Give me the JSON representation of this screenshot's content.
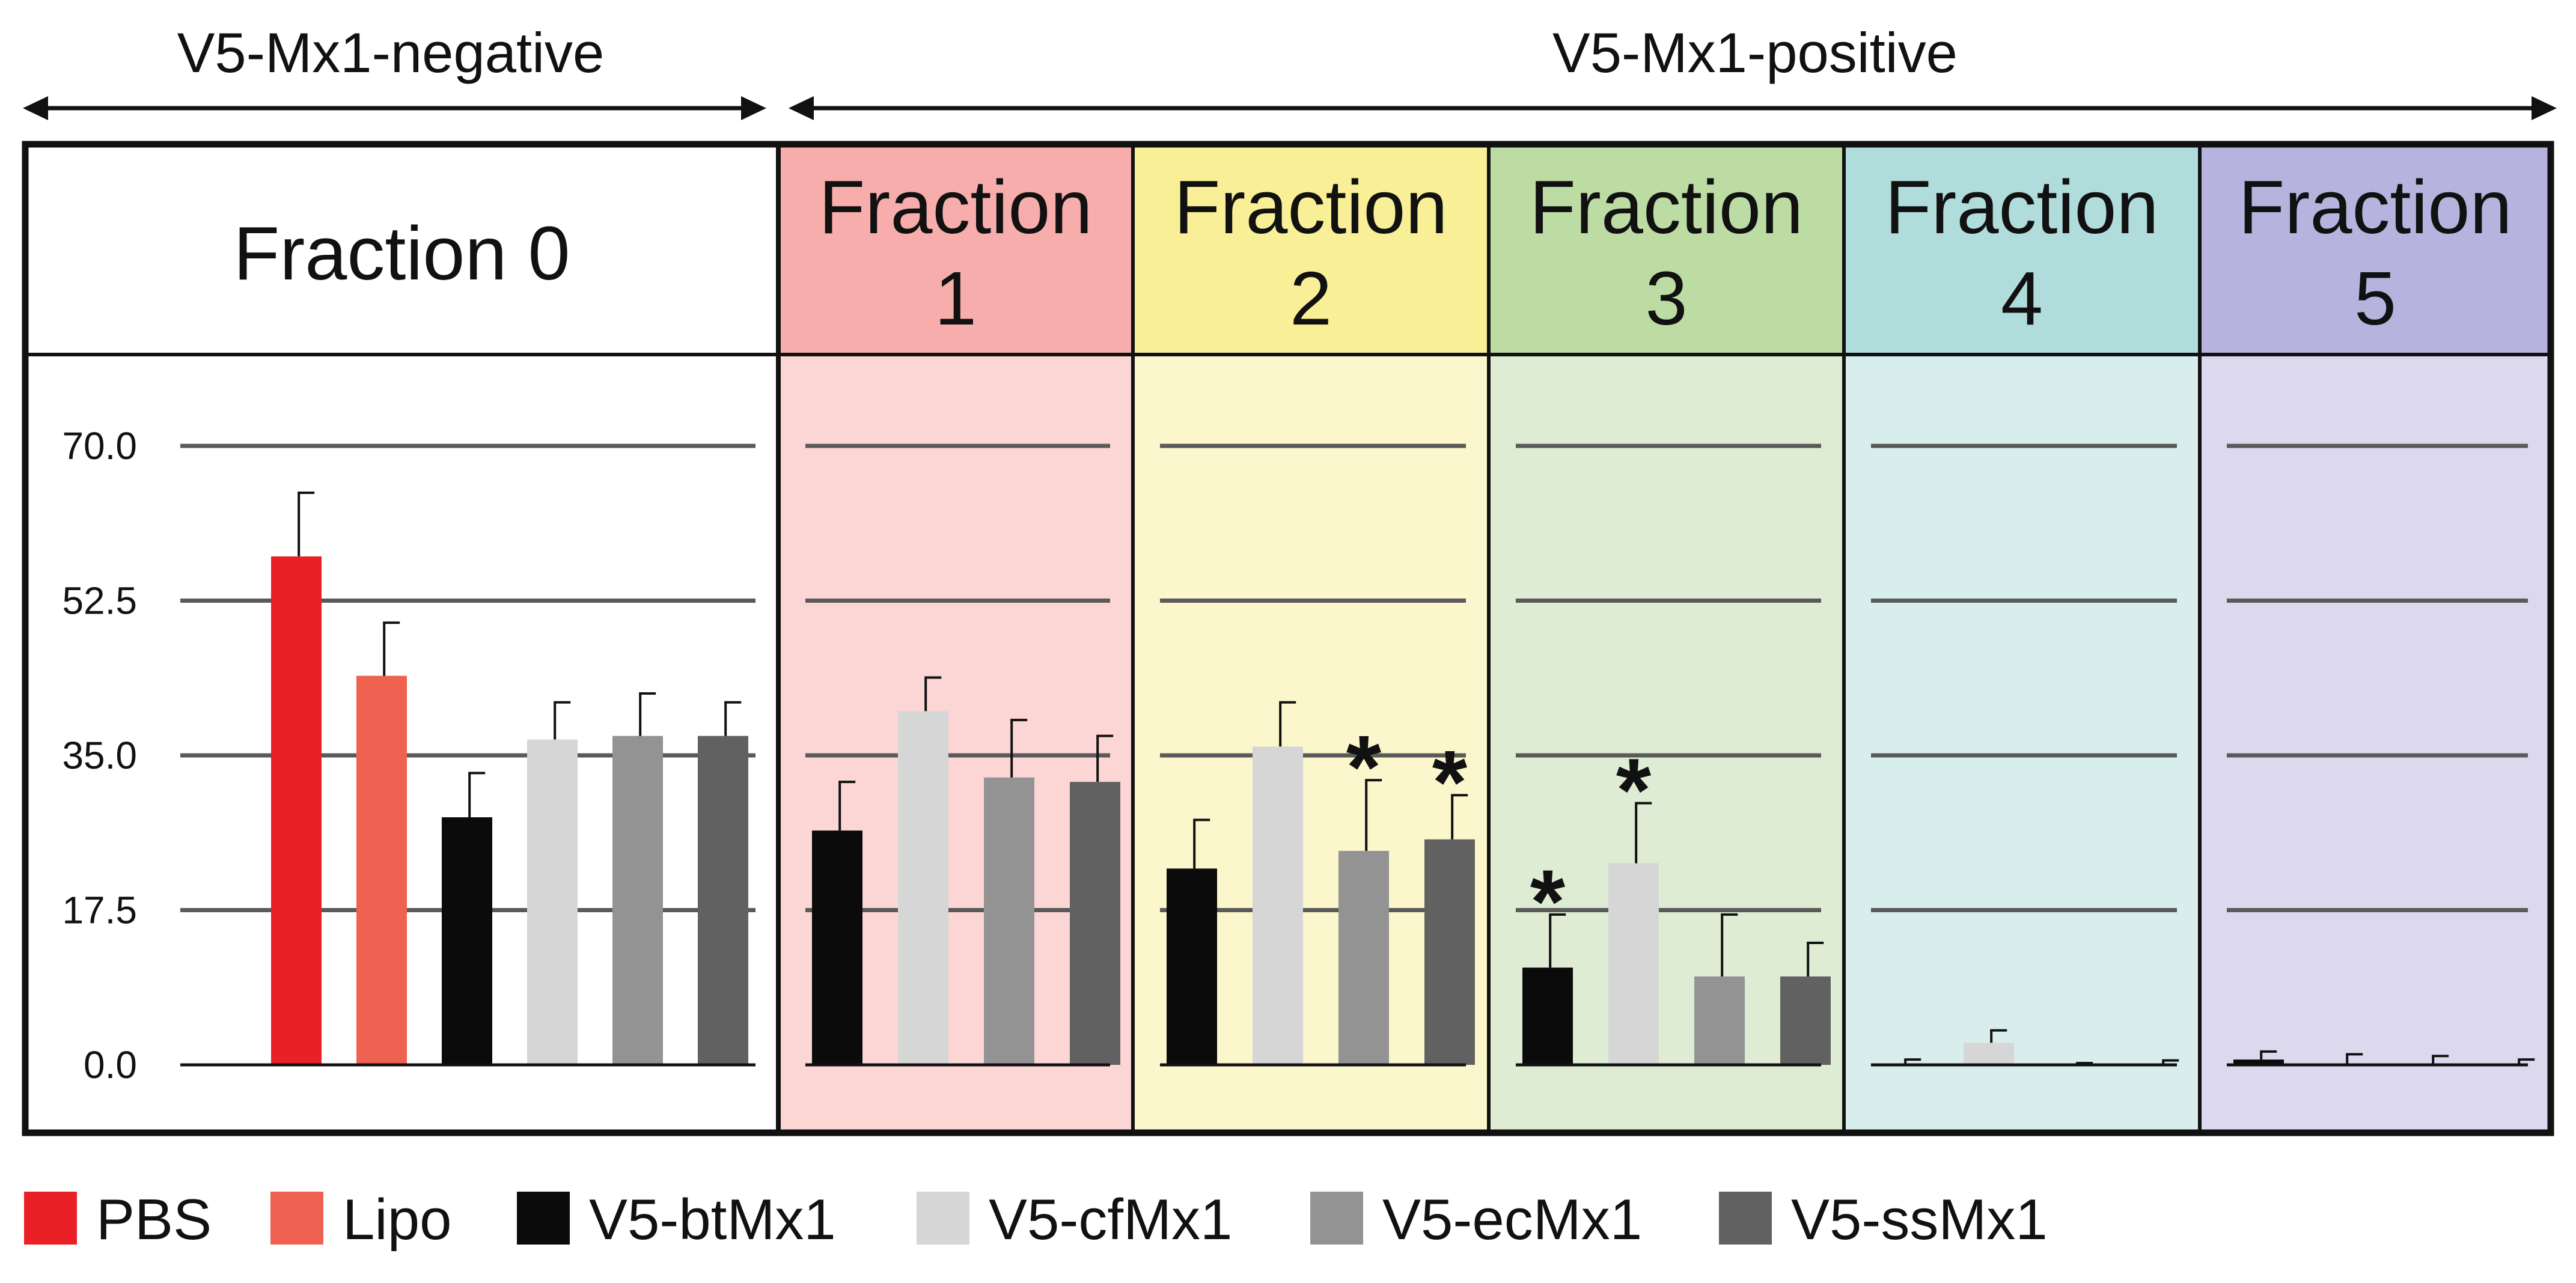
{
  "chart_data": {
    "type": "bar",
    "group_labels": {
      "negative": "V5-Mx1-negative",
      "positive": "V5-Mx1-positive"
    },
    "y_ticks": [
      "70.0",
      "52.5",
      "35.0",
      "17.5",
      "0.0"
    ],
    "ylim": [
      0,
      70
    ],
    "grid": true,
    "legend_position": "bottom",
    "panels": [
      {
        "title": [
          "Fraction 0"
        ],
        "header_color": "#ffffff",
        "body_color": "#ffffff",
        "bars": [
          {
            "series": "PBS",
            "value": 57.5,
            "error": 7.2,
            "significant": false
          },
          {
            "series": "Lipo",
            "value": 44.0,
            "error": 6.0,
            "significant": false
          },
          {
            "series": "V5-btMx1",
            "value": 28.0,
            "error": 5.0,
            "significant": false
          },
          {
            "series": "V5-cfMx1",
            "value": 36.8,
            "error": 4.2,
            "significant": false
          },
          {
            "series": "V5-ecMx1",
            "value": 37.2,
            "error": 4.8,
            "significant": false
          },
          {
            "series": "V5-ssMx1",
            "value": 37.2,
            "error": 3.8,
            "significant": false
          }
        ]
      },
      {
        "title": [
          "Fraction",
          "1"
        ],
        "header_color": "#f6adab",
        "body_color": "#fbd6d5",
        "bars": [
          {
            "series": "V5-btMx1",
            "value": 26.5,
            "error": 5.5,
            "significant": false
          },
          {
            "series": "V5-cfMx1",
            "value": 40.0,
            "error": 3.8,
            "significant": false
          },
          {
            "series": "V5-ecMx1",
            "value": 32.5,
            "error": 6.5,
            "significant": false
          },
          {
            "series": "V5-ssMx1",
            "value": 32.0,
            "error": 5.2,
            "significant": false
          }
        ]
      },
      {
        "title": [
          "Fraction",
          "2"
        ],
        "header_color": "#f8ef97",
        "body_color": "#fbf6cb",
        "bars": [
          {
            "series": "V5-btMx1",
            "value": 22.2,
            "error": 5.5,
            "significant": false
          },
          {
            "series": "V5-cfMx1",
            "value": 36.0,
            "error": 5.0,
            "significant": false
          },
          {
            "series": "V5-ecMx1",
            "value": 24.2,
            "error": 8.0,
            "significant": true
          },
          {
            "series": "V5-ssMx1",
            "value": 25.5,
            "error": 5.0,
            "significant": true
          }
        ]
      },
      {
        "title": [
          "Fraction",
          "3"
        ],
        "header_color": "#bcdca4",
        "body_color": "#ddecd2",
        "bars": [
          {
            "series": "V5-btMx1",
            "value": 11.0,
            "error": 6.0,
            "significant": true
          },
          {
            "series": "V5-cfMx1",
            "value": 22.8,
            "error": 6.8,
            "significant": true
          },
          {
            "series": "V5-ecMx1",
            "value": 10.0,
            "error": 7.0,
            "significant": false
          },
          {
            "series": "V5-ssMx1",
            "value": 10.0,
            "error": 3.8,
            "significant": false
          }
        ]
      },
      {
        "title": [
          "Fraction",
          "4"
        ],
        "header_color": "#b0dcdb",
        "body_color": "#d8eeed",
        "bars": [
          {
            "series": "V5-btMx1",
            "value": 0.0,
            "error": 0.6,
            "significant": false
          },
          {
            "series": "V5-cfMx1",
            "value": 2.5,
            "error": 1.4,
            "significant": false
          },
          {
            "series": "V5-ecMx1",
            "value": 0.0,
            "error": 0.2,
            "significant": false
          },
          {
            "series": "V5-ssMx1",
            "value": 0.0,
            "error": 0.5,
            "significant": false
          }
        ]
      },
      {
        "title": [
          "Fraction",
          "5"
        ],
        "header_color": "#b6b3de",
        "body_color": "#dcd9ee",
        "bars": [
          {
            "series": "V5-btMx1",
            "value": 0.6,
            "error": 0.9,
            "significant": false
          },
          {
            "series": "V5-cfMx1",
            "value": 0.0,
            "error": 1.2,
            "significant": false
          },
          {
            "series": "V5-ecMx1",
            "value": 0.0,
            "error": 1.0,
            "significant": false
          },
          {
            "series": "V5-ssMx1",
            "value": 0.0,
            "error": 0.6,
            "significant": false
          }
        ]
      }
    ],
    "legend": [
      {
        "name": "PBS",
        "color": "#e92026"
      },
      {
        "name": "Lipo",
        "color": "#ef6150"
      },
      {
        "name": "V5-btMx1",
        "color": "#0b0b0b"
      },
      {
        "name": "V5-cfMx1",
        "color": "#d6d6d6"
      },
      {
        "name": "V5-ecMx1",
        "color": "#939393"
      },
      {
        "name": "V5-ssMx1",
        "color": "#616161"
      }
    ],
    "significance_marker": "*"
  }
}
